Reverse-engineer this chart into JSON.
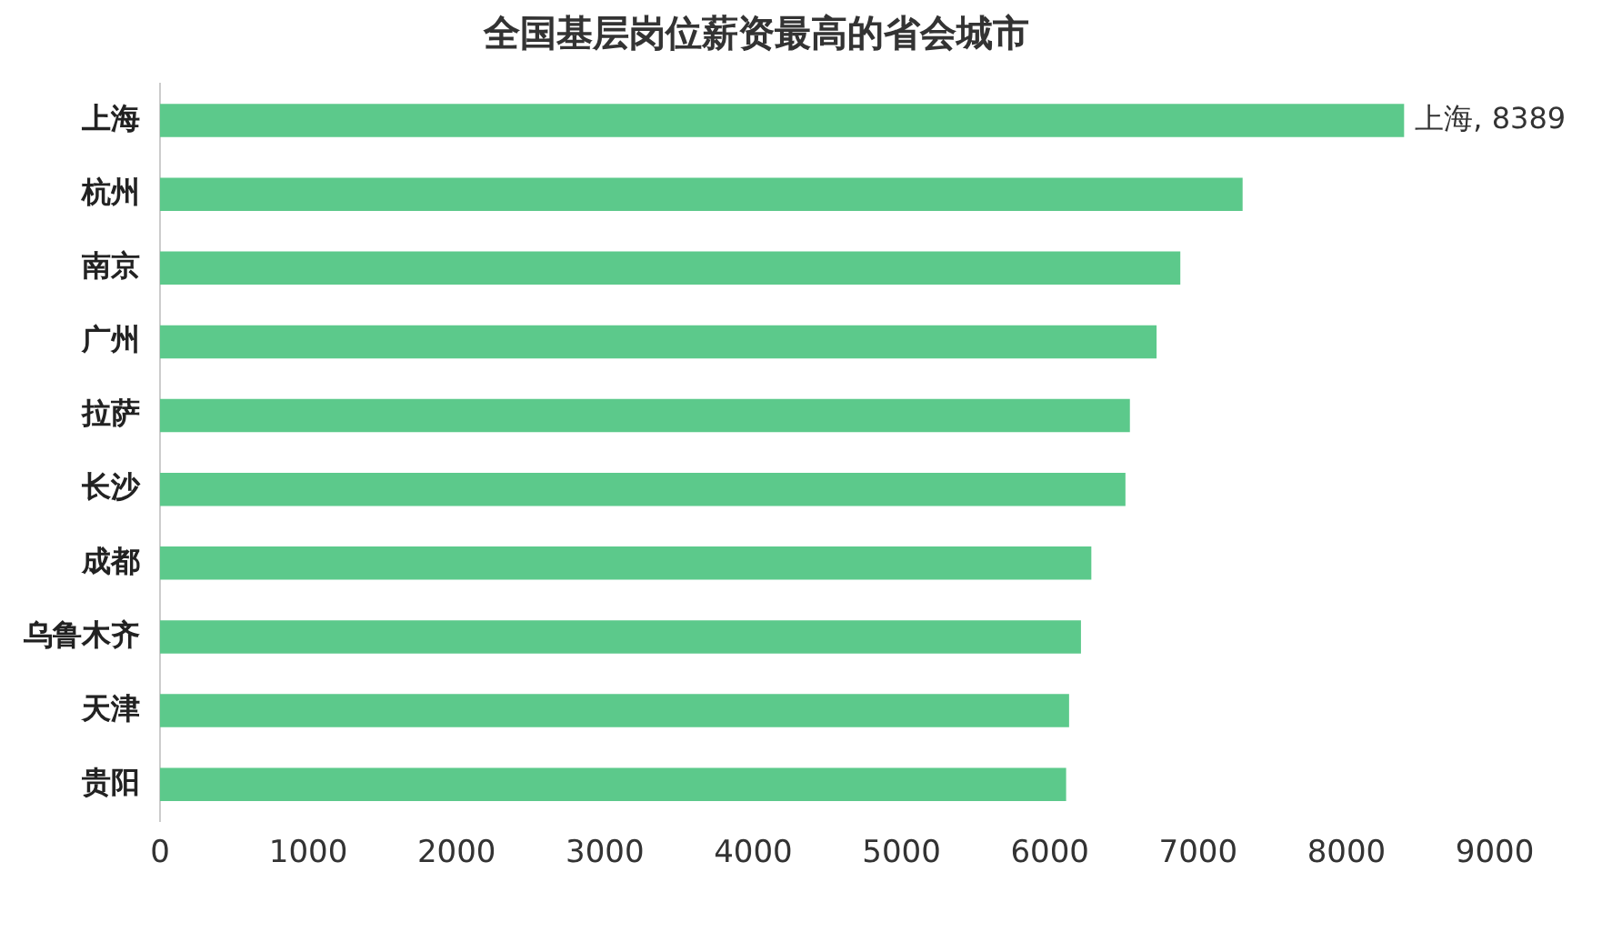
{
  "chart_data": {
    "type": "bar",
    "orientation": "horizontal",
    "title": "全国基层岗位薪资最高的省会城市",
    "categories": [
      "上海",
      "杭州",
      "南京",
      "广州",
      "拉萨",
      "长沙",
      "成都",
      "乌鲁木齐",
      "天津",
      "贵阳"
    ],
    "values": [
      8389,
      7300,
      6880,
      6720,
      6540,
      6510,
      6280,
      6210,
      6130,
      6110
    ],
    "value_labels": [
      "上海, 8389",
      null,
      null,
      null,
      null,
      null,
      null,
      null,
      null,
      null
    ],
    "color": "#5cc98b",
    "xlim": [
      0,
      9000
    ],
    "xticks": [
      0,
      1000,
      2000,
      3000,
      4000,
      5000,
      6000,
      7000,
      8000,
      9000
    ],
    "grid": false,
    "legend": false
  }
}
